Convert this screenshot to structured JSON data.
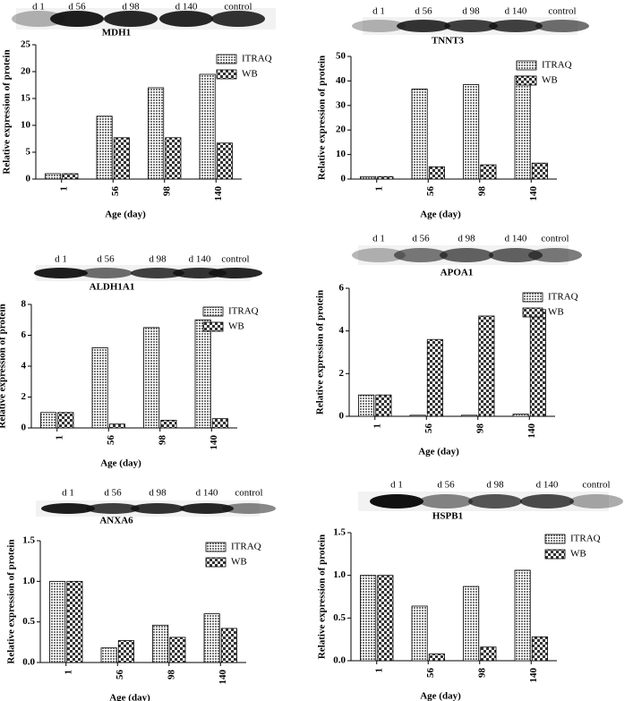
{
  "chart_data": [
    {
      "type": "bar",
      "title": "MDH1",
      "lanes": [
        "d 1",
        "d 56",
        "d 98",
        "d 140",
        "control"
      ],
      "xlabel": "Age (day)",
      "ylabel": "Relative expression of protein",
      "categories": [
        "1",
        "56",
        "98",
        "140"
      ],
      "series": [
        {
          "name": "ITRAQ",
          "color": "#777777",
          "values": [
            1,
            11.7,
            17,
            19.5
          ]
        },
        {
          "name": "WB",
          "color": "#333333",
          "values": [
            1,
            7.7,
            7.7,
            6.7
          ]
        }
      ],
      "ylim": [
        0,
        25
      ],
      "yticks": [
        0,
        5,
        10,
        15,
        20,
        25
      ]
    },
    {
      "type": "bar",
      "title": "TNNT3",
      "lanes": [
        "d 1",
        "d 56",
        "d 98",
        "d 140",
        "control"
      ],
      "xlabel": "Age (day)",
      "ylabel": "Relative expression of protein",
      "categories": [
        "1",
        "56",
        "98",
        "140"
      ],
      "series": [
        {
          "name": "ITRAQ",
          "color": "#777777",
          "values": [
            1,
            36.7,
            38.5,
            42
          ]
        },
        {
          "name": "WB",
          "color": "#333333",
          "values": [
            1,
            5,
            5.8,
            6.5
          ]
        }
      ],
      "ylim": [
        0,
        50
      ],
      "yticks": [
        0,
        10,
        20,
        30,
        40,
        50
      ]
    },
    {
      "type": "bar",
      "title": "ALDH1A1",
      "lanes": [
        "d 1",
        "d 56",
        "d 98",
        "d 140",
        "control"
      ],
      "xlabel": "Age (day)",
      "ylabel": "Relative expression of protein",
      "categories": [
        "1",
        "56",
        "98",
        "140"
      ],
      "series": [
        {
          "name": "ITRAQ",
          "color": "#777777",
          "values": [
            1,
            5.2,
            6.5,
            7
          ]
        },
        {
          "name": "WB",
          "color": "#333333",
          "values": [
            1,
            0.25,
            0.5,
            0.6
          ]
        }
      ],
      "ylim": [
        0,
        8
      ],
      "yticks": [
        0,
        2,
        4,
        6,
        8
      ]
    },
    {
      "type": "bar",
      "title": "APOA1",
      "lanes": [
        "d 1",
        "d 56",
        "d 98",
        "d 140",
        "control"
      ],
      "xlabel": "Age (day)",
      "ylabel": "Relative expression of protein",
      "categories": [
        "1",
        "56",
        "98",
        "140"
      ],
      "series": [
        {
          "name": "ITRAQ",
          "color": "#777777",
          "values": [
            1,
            0.05,
            0.05,
            0.1
          ]
        },
        {
          "name": "WB",
          "color": "#333333",
          "values": [
            1,
            3.6,
            4.7,
            5
          ]
        }
      ],
      "ylim": [
        0,
        6
      ],
      "yticks": [
        0,
        2,
        4,
        6
      ]
    },
    {
      "type": "bar",
      "title": "ANXA6",
      "lanes": [
        "d 1",
        "d 56",
        "d 98",
        "d 140",
        "control"
      ],
      "xlabel": "Age (day)",
      "ylabel": "Relative expression of protein",
      "categories": [
        "1",
        "56",
        "98",
        "140"
      ],
      "series": [
        {
          "name": "ITRAQ",
          "color": "#777777",
          "values": [
            1,
            0.18,
            0.46,
            0.6
          ]
        },
        {
          "name": "WB",
          "color": "#333333",
          "values": [
            1,
            0.27,
            0.31,
            0.42
          ]
        }
      ],
      "ylim": [
        0,
        1.5
      ],
      "yticks": [
        {
          "value": 0,
          "label": "0.0"
        },
        {
          "value": 0.5,
          "label": "0.5"
        },
        {
          "value": 1,
          "label": "1.0"
        },
        {
          "value": 1.5,
          "label": "1.5"
        }
      ]
    },
    {
      "type": "bar",
      "title": "HSPB1",
      "lanes": [
        "d 1",
        "d 56",
        "d 98",
        "d 140",
        "control"
      ],
      "xlabel": "Age (day)",
      "ylabel": "Relative expression of protein",
      "categories": [
        "1",
        "56",
        "98",
        "140"
      ],
      "series": [
        {
          "name": "ITRAQ",
          "color": "#777777",
          "values": [
            1,
            0.64,
            0.87,
            1.06
          ]
        },
        {
          "name": "WB",
          "color": "#333333",
          "values": [
            1,
            0.08,
            0.16,
            0.28
          ]
        }
      ],
      "ylim": [
        0,
        1.5
      ],
      "yticks": [
        {
          "value": 0,
          "label": "0.0"
        },
        {
          "value": 0.5,
          "label": "0.5"
        },
        {
          "value": 1,
          "label": "1.0"
        },
        {
          "value": 1.5,
          "label": "1.5"
        }
      ]
    }
  ]
}
